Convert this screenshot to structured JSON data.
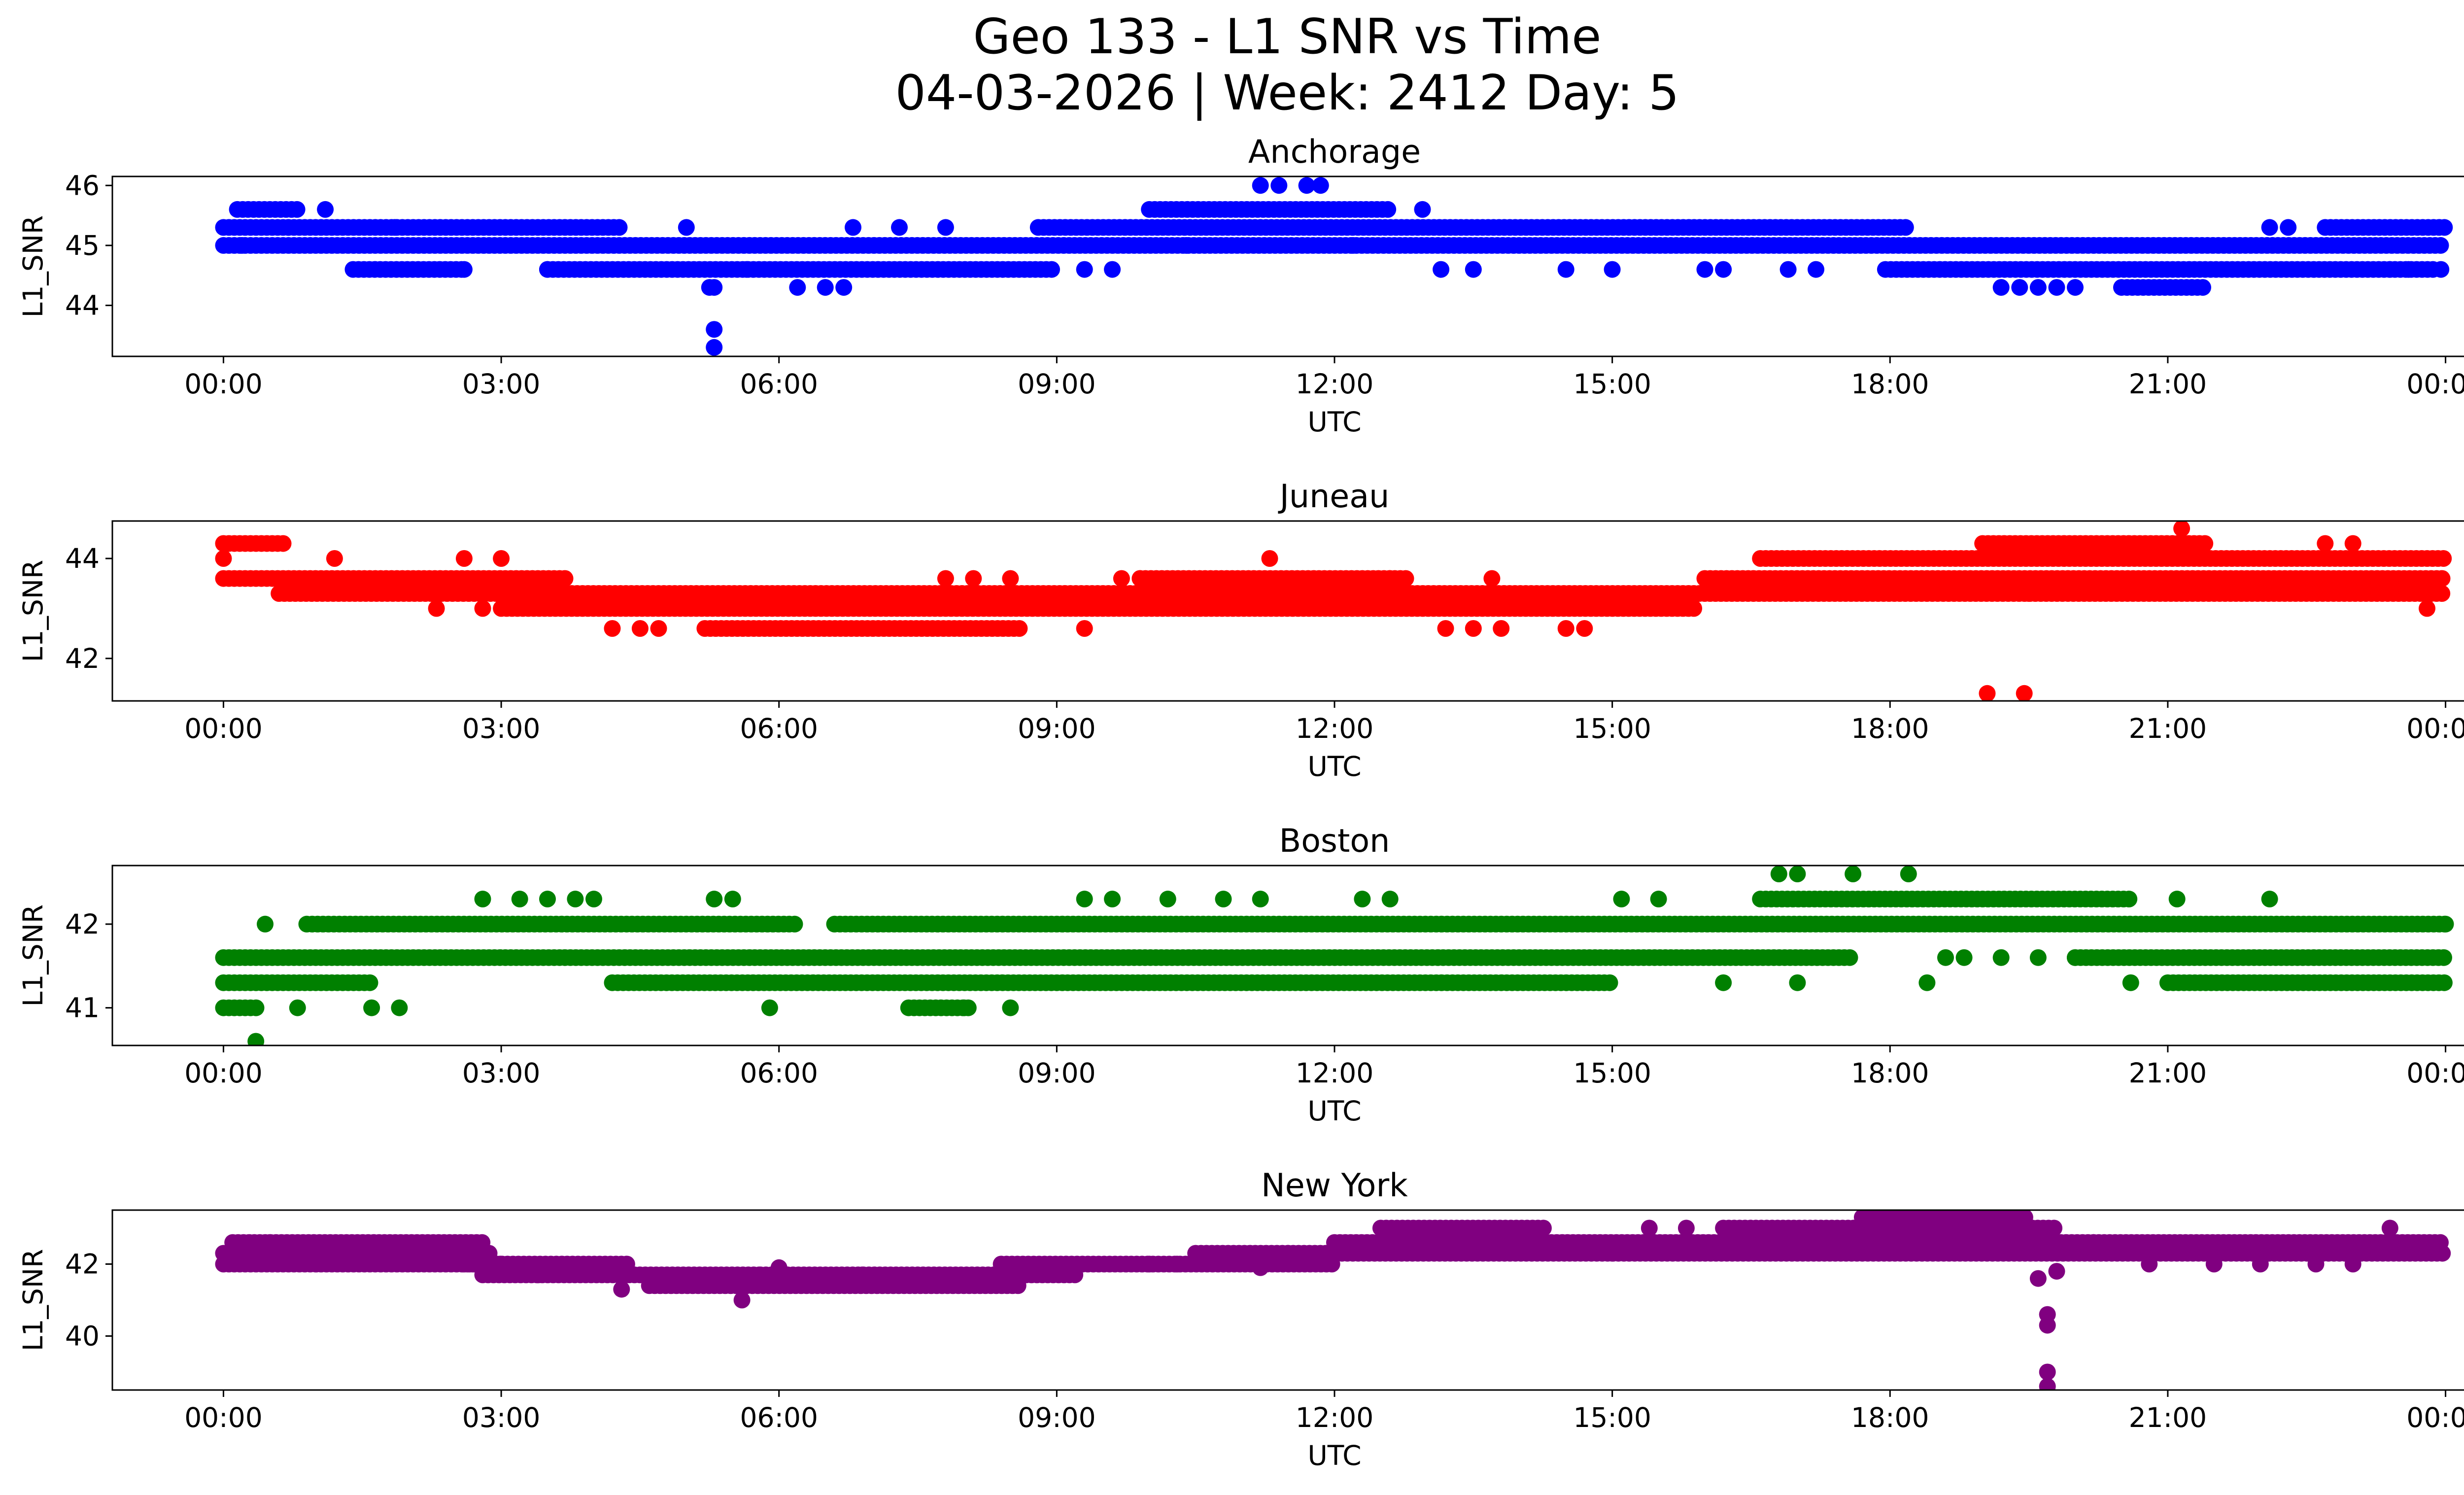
{
  "figure": {
    "title_line1": "Geo 133 - L1 SNR vs Time",
    "title_line2": "04-03-2026 | Week: 2412 Day: 5"
  },
  "chart_data": [
    {
      "type": "scatter",
      "title": "Anchorage",
      "xlabel": "UTC",
      "ylabel": "L1_SNR",
      "color": "#0000ff",
      "xlim_hours": [
        -1.2,
        25.2
      ],
      "ylim": [
        43.15,
        46.15
      ],
      "xticks": [
        {
          "hour": 0,
          "label": "00:00"
        },
        {
          "hour": 3,
          "label": "03:00"
        },
        {
          "hour": 6,
          "label": "06:00"
        },
        {
          "hour": 9,
          "label": "09:00"
        },
        {
          "hour": 12,
          "label": "12:00"
        },
        {
          "hour": 15,
          "label": "15:00"
        },
        {
          "hour": 18,
          "label": "18:00"
        },
        {
          "hour": 21,
          "label": "21:00"
        },
        {
          "hour": 24,
          "label": "00:00"
        }
      ],
      "yticks": [
        {
          "value": 44,
          "label": "44"
        },
        {
          "value": 45,
          "label": "45"
        },
        {
          "value": 46,
          "label": "46"
        }
      ],
      "bands": [
        {
          "value": 45.0,
          "start": 0,
          "end": 24
        },
        {
          "value": 45.3,
          "start": 0,
          "end": 4.3
        },
        {
          "value": 45.3,
          "start": 8.8,
          "end": 18.2
        },
        {
          "value": 44.6,
          "start": 1.4,
          "end": 2.6
        },
        {
          "value": 44.6,
          "start": 3.5,
          "end": 9.0
        },
        {
          "value": 44.6,
          "start": 17.95,
          "end": 23.9
        },
        {
          "value": 45.6,
          "start": 10.0,
          "end": 12.6
        },
        {
          "value": 45.6,
          "start": 0.15,
          "end": 0.8
        },
        {
          "value": 44.3,
          "start": 20.5,
          "end": 21.4
        },
        {
          "value": 45.3,
          "start": 22.7,
          "end": 24
        }
      ],
      "points": [
        [
          0.2,
          45.0
        ],
        [
          0.7,
          45.3
        ],
        [
          1.1,
          45.6
        ],
        [
          1.85,
          45.3
        ],
        [
          2.6,
          44.6
        ],
        [
          3.5,
          44.6
        ],
        [
          5.0,
          45.3
        ],
        [
          5.25,
          44.3
        ],
        [
          5.3,
          44.3
        ],
        [
          5.3,
          43.6
        ],
        [
          5.3,
          43.3
        ],
        [
          5.65,
          44.6
        ],
        [
          6.2,
          44.3
        ],
        [
          6.5,
          44.3
        ],
        [
          6.7,
          44.3
        ],
        [
          6.8,
          45.3
        ],
        [
          7.3,
          45.3
        ],
        [
          7.8,
          45.3
        ],
        [
          9.3,
          44.6
        ],
        [
          9.6,
          44.6
        ],
        [
          10.4,
          45.0
        ],
        [
          11.2,
          46.0
        ],
        [
          11.4,
          46.0
        ],
        [
          11.7,
          46.0
        ],
        [
          11.85,
          46.0
        ],
        [
          12.2,
          45.0
        ],
        [
          12.95,
          45.6
        ],
        [
          13.15,
          44.6
        ],
        [
          13.5,
          44.6
        ],
        [
          14.5,
          44.6
        ],
        [
          15.0,
          44.6
        ],
        [
          16.0,
          44.6
        ],
        [
          16.2,
          44.6
        ],
        [
          16.9,
          44.6
        ],
        [
          17.2,
          44.6
        ],
        [
          19.2,
          44.3
        ],
        [
          19.4,
          44.3
        ],
        [
          19.6,
          44.3
        ],
        [
          19.8,
          44.3
        ],
        [
          20.0,
          44.3
        ],
        [
          22.1,
          45.3
        ],
        [
          22.3,
          45.3
        ],
        [
          23.4,
          44.6
        ],
        [
          23.6,
          44.6
        ],
        [
          23.95,
          44.6
        ]
      ]
    },
    {
      "type": "scatter",
      "title": "Juneau",
      "xlabel": "UTC",
      "ylabel": "L1_SNR",
      "color": "#ff0000",
      "xlim_hours": [
        -1.2,
        25.2
      ],
      "ylim": [
        41.15,
        44.75
      ],
      "xticks": [
        {
          "hour": 0,
          "label": "00:00"
        },
        {
          "hour": 3,
          "label": "03:00"
        },
        {
          "hour": 6,
          "label": "06:00"
        },
        {
          "hour": 9,
          "label": "09:00"
        },
        {
          "hour": 12,
          "label": "12:00"
        },
        {
          "hour": 15,
          "label": "15:00"
        },
        {
          "hour": 18,
          "label": "18:00"
        },
        {
          "hour": 21,
          "label": "21:00"
        },
        {
          "hour": 24,
          "label": "00:00"
        }
      ],
      "yticks": [
        {
          "value": 42,
          "label": "42"
        },
        {
          "value": 44,
          "label": "44"
        }
      ],
      "bands": [
        {
          "value": 43.6,
          "start": 0,
          "end": 3.7
        },
        {
          "value": 43.3,
          "start": 0.6,
          "end": 24
        },
        {
          "value": 43.0,
          "start": 3.0,
          "end": 15.9
        },
        {
          "value": 42.6,
          "start": 5.2,
          "end": 8.6
        },
        {
          "value": 43.6,
          "start": 9.9,
          "end": 12.8
        },
        {
          "value": 43.6,
          "start": 16.0,
          "end": 24
        },
        {
          "value": 44.0,
          "start": 16.6,
          "end": 24
        },
        {
          "value": 44.3,
          "start": 0,
          "end": 0.7
        },
        {
          "value": 44.3,
          "start": 19.0,
          "end": 21.4
        }
      ],
      "points": [
        [
          0.0,
          44.0
        ],
        [
          1.2,
          44.0
        ],
        [
          2.3,
          43.0
        ],
        [
          2.6,
          44.0
        ],
        [
          2.8,
          43.0
        ],
        [
          3.0,
          44.0
        ],
        [
          4.2,
          42.6
        ],
        [
          4.5,
          42.6
        ],
        [
          4.7,
          42.6
        ],
        [
          7.8,
          43.6
        ],
        [
          8.1,
          43.6
        ],
        [
          8.5,
          43.6
        ],
        [
          9.3,
          42.6
        ],
        [
          9.7,
          43.6
        ],
        [
          9.9,
          43.6
        ],
        [
          11.3,
          44.0
        ],
        [
          12.6,
          43.6
        ],
        [
          13.2,
          42.6
        ],
        [
          13.5,
          42.6
        ],
        [
          13.7,
          43.6
        ],
        [
          13.8,
          42.6
        ],
        [
          14.5,
          42.6
        ],
        [
          14.7,
          42.6
        ],
        [
          19.05,
          41.3
        ],
        [
          19.45,
          41.3
        ],
        [
          19.5,
          43.3
        ],
        [
          21.15,
          44.6
        ],
        [
          22.7,
          44.3
        ],
        [
          23.0,
          44.3
        ],
        [
          23.8,
          43.0
        ]
      ]
    },
    {
      "type": "scatter",
      "title": "Boston",
      "xlabel": "UTC",
      "ylabel": "L1_SNR",
      "color": "#008000",
      "xlim_hours": [
        -1.2,
        25.2
      ],
      "ylim": [
        40.55,
        42.7
      ],
      "xticks": [
        {
          "hour": 0,
          "label": "00:00"
        },
        {
          "hour": 3,
          "label": "03:00"
        },
        {
          "hour": 6,
          "label": "06:00"
        },
        {
          "hour": 9,
          "label": "09:00"
        },
        {
          "hour": 12,
          "label": "12:00"
        },
        {
          "hour": 15,
          "label": "15:00"
        },
        {
          "hour": 18,
          "label": "18:00"
        },
        {
          "hour": 21,
          "label": "21:00"
        },
        {
          "hour": 24,
          "label": "00:00"
        }
      ],
      "yticks": [
        {
          "value": 41,
          "label": "41"
        },
        {
          "value": 42,
          "label": "42"
        }
      ],
      "bands": [
        {
          "value": 41.6,
          "start": 0,
          "end": 17.6
        },
        {
          "value": 41.6,
          "start": 20.0,
          "end": 24
        },
        {
          "value": 41.3,
          "start": 0,
          "end": 1.6
        },
        {
          "value": 41.3,
          "start": 4.2,
          "end": 15.0
        },
        {
          "value": 41.3,
          "start": 21.0,
          "end": 24
        },
        {
          "value": 42.0,
          "start": 0.9,
          "end": 6.2
        },
        {
          "value": 42.0,
          "start": 6.6,
          "end": 24
        },
        {
          "value": 42.3,
          "start": 16.6,
          "end": 20.6
        },
        {
          "value": 41.0,
          "start": 0,
          "end": 0.4
        },
        {
          "value": 41.0,
          "start": 7.4,
          "end": 8.1
        }
      ],
      "points": [
        [
          0.35,
          40.6
        ],
        [
          0.45,
          42.0
        ],
        [
          0.8,
          41.0
        ],
        [
          1.6,
          41.0
        ],
        [
          1.9,
          41.0
        ],
        [
          2.8,
          42.3
        ],
        [
          3.2,
          42.3
        ],
        [
          3.5,
          42.3
        ],
        [
          3.8,
          42.3
        ],
        [
          4.0,
          42.3
        ],
        [
          5.3,
          42.3
        ],
        [
          5.5,
          42.3
        ],
        [
          5.9,
          41.0
        ],
        [
          8.0,
          41.0
        ],
        [
          8.5,
          41.0
        ],
        [
          9.3,
          42.3
        ],
        [
          9.6,
          42.3
        ],
        [
          10.2,
          42.3
        ],
        [
          10.8,
          42.3
        ],
        [
          11.2,
          42.3
        ],
        [
          12.3,
          42.3
        ],
        [
          12.6,
          42.3
        ],
        [
          15.1,
          42.3
        ],
        [
          15.5,
          42.3
        ],
        [
          16.2,
          41.3
        ],
        [
          16.8,
          42.6
        ],
        [
          17.0,
          42.6
        ],
        [
          17.0,
          41.3
        ],
        [
          17.6,
          42.6
        ],
        [
          18.2,
          42.6
        ],
        [
          18.4,
          41.3
        ],
        [
          18.6,
          41.6
        ],
        [
          18.8,
          41.6
        ],
        [
          19.2,
          41.6
        ],
        [
          19.6,
          41.6
        ],
        [
          20.0,
          41.6
        ],
        [
          20.6,
          41.3
        ],
        [
          21.1,
          42.3
        ],
        [
          22.1,
          42.3
        ],
        [
          24.0,
          42.0
        ]
      ]
    },
    {
      "type": "scatter",
      "title": "New York",
      "xlabel": "UTC",
      "ylabel": "L1_SNR",
      "color": "#800080",
      "xlim_hours": [
        -1.2,
        25.2
      ],
      "ylim": [
        38.5,
        43.5
      ],
      "xticks": [
        {
          "hour": 0,
          "label": "00:00"
        },
        {
          "hour": 3,
          "label": "03:00"
        },
        {
          "hour": 6,
          "label": "06:00"
        },
        {
          "hour": 9,
          "label": "09:00"
        },
        {
          "hour": 12,
          "label": "12:00"
        },
        {
          "hour": 15,
          "label": "15:00"
        },
        {
          "hour": 18,
          "label": "18:00"
        },
        {
          "hour": 21,
          "label": "21:00"
        },
        {
          "hour": 24,
          "label": "00:00"
        }
      ],
      "yticks": [
        {
          "value": 40,
          "label": "40"
        },
        {
          "value": 42,
          "label": "42"
        }
      ],
      "bands": [
        {
          "value": 42.0,
          "start": 0,
          "end": 3.0
        },
        {
          "value": 42.3,
          "start": 0,
          "end": 2.9
        },
        {
          "value": 42.6,
          "start": 0.1,
          "end": 2.8
        },
        {
          "value": 41.7,
          "start": 2.8,
          "end": 5.8
        },
        {
          "value": 42.0,
          "start": 2.6,
          "end": 4.4
        },
        {
          "value": 41.4,
          "start": 4.6,
          "end": 8.6
        },
        {
          "value": 41.7,
          "start": 5.8,
          "end": 9.2
        },
        {
          "value": 42.0,
          "start": 8.4,
          "end": 12.0
        },
        {
          "value": 42.3,
          "start": 10.5,
          "end": 24
        },
        {
          "value": 42.6,
          "start": 12.0,
          "end": 24
        },
        {
          "value": 43.0,
          "start": 12.5,
          "end": 14.3
        },
        {
          "value": 43.0,
          "start": 16.2,
          "end": 19.8
        },
        {
          "value": 43.3,
          "start": 17.7,
          "end": 19.5
        }
      ],
      "points": [
        [
          0.5,
          42.6
        ],
        [
          1.0,
          42.0
        ],
        [
          2.2,
          42.3
        ],
        [
          3.4,
          41.7
        ],
        [
          4.3,
          41.3
        ],
        [
          5.6,
          41.0
        ],
        [
          6.0,
          41.9
        ],
        [
          6.9,
          41.7
        ],
        [
          10.0,
          42.0
        ],
        [
          10.3,
          42.0
        ],
        [
          11.2,
          41.9
        ],
        [
          11.5,
          42.3
        ],
        [
          15.0,
          42.3
        ],
        [
          15.4,
          43.0
        ],
        [
          15.8,
          43.0
        ],
        [
          17.5,
          42.6
        ],
        [
          19.6,
          41.6
        ],
        [
          19.7,
          40.6
        ],
        [
          19.7,
          40.3
        ],
        [
          19.7,
          39.0
        ],
        [
          19.7,
          38.6
        ],
        [
          19.8,
          41.8
        ],
        [
          20.2,
          42.6
        ],
        [
          20.8,
          42.0
        ],
        [
          21.5,
          42.0
        ],
        [
          22.0,
          42.0
        ],
        [
          22.6,
          42.0
        ],
        [
          23.0,
          42.0
        ],
        [
          23.4,
          43.0
        ]
      ]
    }
  ]
}
